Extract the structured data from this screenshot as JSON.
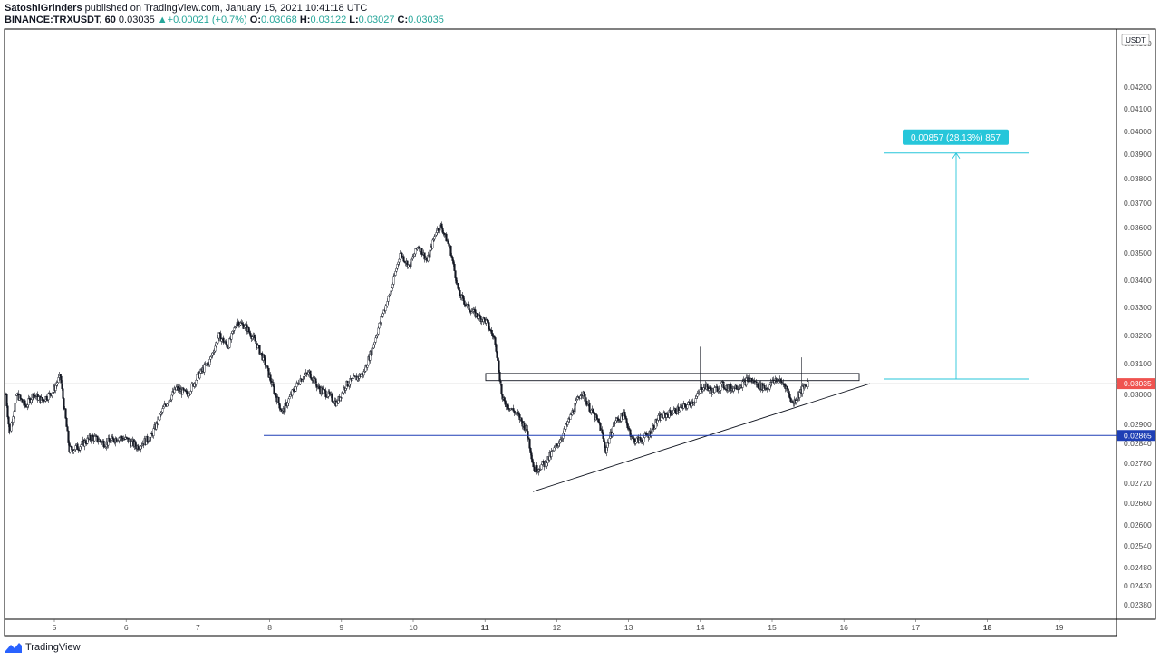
{
  "header": {
    "author": "SatoshiGrinders",
    "published_text": "published on TradingView.com, January 15, 2021 10:41:18 UTC",
    "symbol": "BINANCE:TRXUSDT, 60",
    "last": "0.03035",
    "change": "+0.00021 (+0.7%)",
    "open_label": "O:",
    "open": "0.03068",
    "high_label": "H:",
    "high": "0.03122",
    "low_label": "L:",
    "low": "0.03027",
    "close_label": "C:",
    "close": "0.03035"
  },
  "footer": {
    "brand": "TradingView"
  },
  "colors": {
    "up_candle": "#ffffff",
    "down_candle": "#131722",
    "measure": "#26c6da",
    "support_line": "#1e3fb5",
    "price_tag": "#ef5350",
    "axis_text": "#4a4a4a"
  },
  "chart_data": {
    "type": "candlestick",
    "currency_label": "USDT",
    "y_ticks": [
      "0.04300",
      "0.04200",
      "0.04100",
      "0.04000",
      "0.03900",
      "0.03800",
      "0.03700",
      "0.03600",
      "0.03500",
      "0.03400",
      "0.03300",
      "0.03200",
      "0.03100",
      "0.03000",
      "0.02900",
      "0.02840",
      "0.02780",
      "0.02720",
      "0.02660",
      "0.02600",
      "0.02540",
      "0.02480",
      "0.02430",
      "0.02380"
    ],
    "x_ticks": [
      "5",
      "6",
      "7",
      "8",
      "9",
      "10",
      "11",
      "12",
      "13",
      "14",
      "15",
      "16",
      "17",
      "18",
      "19"
    ],
    "bold_x_ticks": [
      "11",
      "18"
    ],
    "last_price": "0.03035",
    "support_price": "0.02865",
    "measure_label": "0.00857 (28.13%) 857",
    "ohlc_path": [
      [
        0,
        0.03
      ],
      [
        4,
        0.0287
      ],
      [
        12,
        0.03
      ],
      [
        22,
        0.0296
      ],
      [
        30,
        0.03
      ],
      [
        40,
        0.0298
      ],
      [
        52,
        0.0301
      ],
      [
        60,
        0.0306
      ],
      [
        70,
        0.0282
      ],
      [
        80,
        0.0283
      ],
      [
        95,
        0.0286
      ],
      [
        110,
        0.0284
      ],
      [
        125,
        0.0286
      ],
      [
        135,
        0.0285
      ],
      [
        145,
        0.0283
      ],
      [
        160,
        0.0286
      ],
      [
        175,
        0.0296
      ],
      [
        188,
        0.0302
      ],
      [
        200,
        0.03
      ],
      [
        212,
        0.0306
      ],
      [
        225,
        0.0311
      ],
      [
        235,
        0.032
      ],
      [
        245,
        0.0316
      ],
      [
        255,
        0.0325
      ],
      [
        265,
        0.0323
      ],
      [
        275,
        0.0318
      ],
      [
        285,
        0.0311
      ],
      [
        295,
        0.0302
      ],
      [
        305,
        0.0294
      ],
      [
        315,
        0.03
      ],
      [
        325,
        0.0305
      ],
      [
        335,
        0.0307
      ],
      [
        345,
        0.0302
      ],
      [
        355,
        0.03
      ],
      [
        365,
        0.0297
      ],
      [
        375,
        0.0303
      ],
      [
        385,
        0.0305
      ],
      [
        395,
        0.0307
      ],
      [
        405,
        0.0316
      ],
      [
        415,
        0.0327
      ],
      [
        425,
        0.0336
      ],
      [
        435,
        0.035
      ],
      [
        445,
        0.0345
      ],
      [
        455,
        0.0353
      ],
      [
        465,
        0.0347
      ],
      [
        475,
        0.0359
      ],
      [
        480,
        0.0361
      ],
      [
        490,
        0.0352
      ],
      [
        500,
        0.0335
      ],
      [
        510,
        0.033
      ],
      [
        520,
        0.0327
      ],
      [
        530,
        0.0325
      ],
      [
        540,
        0.0318
      ],
      [
        548,
        0.0298
      ],
      [
        555,
        0.0296
      ],
      [
        565,
        0.0293
      ],
      [
        575,
        0.0288
      ],
      [
        583,
        0.0276
      ],
      [
        595,
        0.0278
      ],
      [
        605,
        0.0282
      ],
      [
        615,
        0.0287
      ],
      [
        625,
        0.0294
      ],
      [
        635,
        0.0301
      ],
      [
        645,
        0.0295
      ],
      [
        655,
        0.029
      ],
      [
        662,
        0.0282
      ],
      [
        672,
        0.0291
      ],
      [
        682,
        0.0293
      ],
      [
        692,
        0.0285
      ],
      [
        700,
        0.0285
      ],
      [
        710,
        0.0287
      ],
      [
        720,
        0.0292
      ],
      [
        735,
        0.0294
      ],
      [
        750,
        0.0296
      ],
      [
        760,
        0.0298
      ],
      [
        770,
        0.0303
      ],
      [
        780,
        0.0301
      ],
      [
        790,
        0.0303
      ],
      [
        800,
        0.0302
      ],
      [
        810,
        0.0303
      ],
      [
        820,
        0.0305
      ],
      [
        830,
        0.0303
      ],
      [
        840,
        0.0302
      ],
      [
        850,
        0.0305
      ],
      [
        860,
        0.0303
      ],
      [
        868,
        0.0297
      ],
      [
        875,
        0.03
      ],
      [
        885,
        0.0304
      ]
    ],
    "high_wicks": [
      {
        "x": 474,
        "high": 0.0365
      },
      {
        "x": 772,
        "high": 0.0316
      },
      {
        "x": 884,
        "high": 0.03122
      }
    ],
    "annotations": [
      {
        "type": "rectangle",
        "name": "resistance-zone",
        "x0": 536,
        "x1": 948,
        "p_top": 0.03068,
        "p_bot": 0.03045
      },
      {
        "type": "trendline",
        "name": "ascending-support",
        "x0": 588,
        "p0": 0.02695,
        "x1": 960,
        "p1": 0.03035
      },
      {
        "type": "hline",
        "name": "support-level",
        "x0": 291,
        "price": 0.02865
      },
      {
        "type": "measure",
        "x0": 975,
        "x1": 1135,
        "p_from": 0.0305,
        "p_to": 0.03905
      }
    ]
  }
}
